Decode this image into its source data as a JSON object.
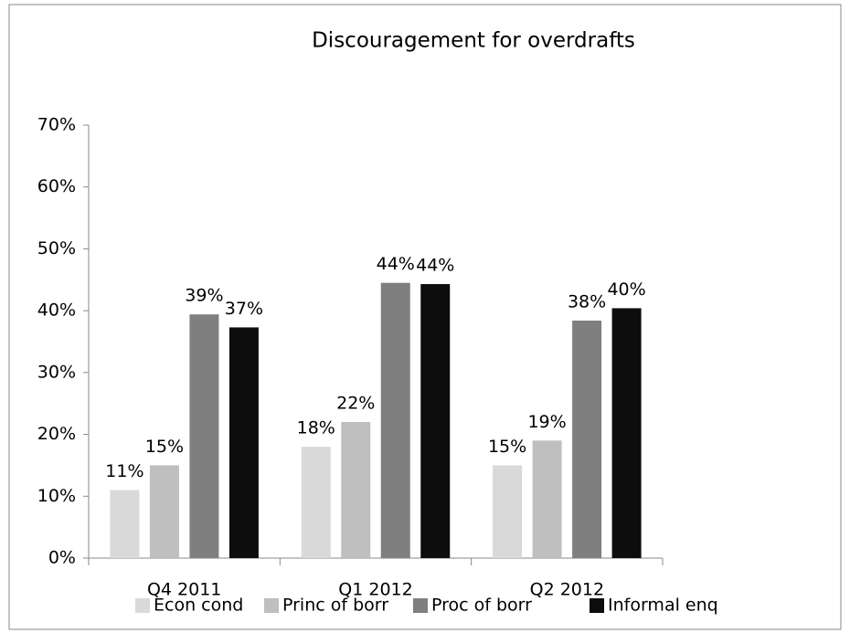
{
  "chart_data": {
    "type": "bar",
    "title": "Discouragement for overdrafts",
    "categories": [
      "Q4 2011",
      "Q1 2012",
      "Q2 2012"
    ],
    "series": [
      {
        "name": "Econ cond",
        "color": "#d9d9d9",
        "values": [
          11,
          18,
          15
        ],
        "value_labels": [
          "11%",
          "18%",
          "15%"
        ]
      },
      {
        "name": "Princ of borr",
        "color": "#bfbfbf",
        "values": [
          15,
          22,
          19
        ],
        "value_labels": [
          "15%",
          "22%",
          "19%"
        ]
      },
      {
        "name": "Proc of borr",
        "color": "#7f7f7f",
        "values": [
          39.4,
          44.5,
          38.4
        ],
        "value_labels": [
          "39%",
          "44%",
          "38%"
        ]
      },
      {
        "name": "Informal enq",
        "color": "#0d0d0d",
        "values": [
          37.3,
          44.3,
          40.4
        ],
        "value_labels": [
          "37%",
          "44%",
          "40%"
        ]
      }
    ],
    "ylim": [
      0,
      70
    ],
    "yticks": [
      {
        "value": 0,
        "label": "0%"
      },
      {
        "value": 10,
        "label": "10%"
      },
      {
        "value": 20,
        "label": "20%"
      },
      {
        "value": 30,
        "label": "30%"
      },
      {
        "value": 40,
        "label": "40%"
      },
      {
        "value": 50,
        "label": "50%"
      },
      {
        "value": 60,
        "label": "60%"
      },
      {
        "value": 70,
        "label": "70%"
      }
    ],
    "grid": false,
    "legend": "bottom"
  }
}
